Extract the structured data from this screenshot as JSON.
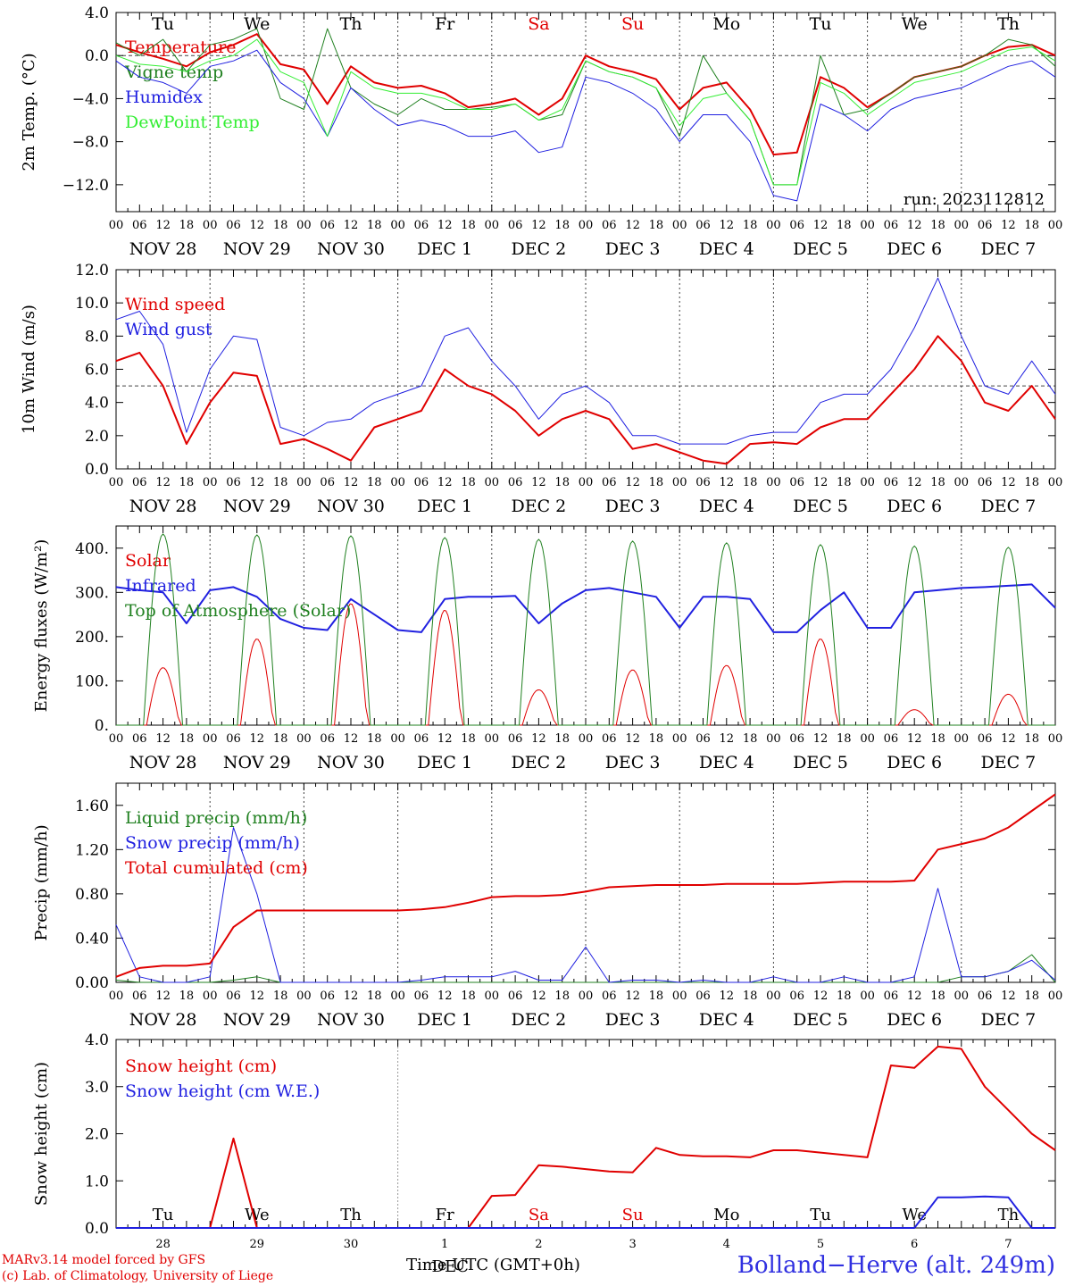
{
  "chart_data": [
    {
      "type": "line",
      "ylabel": "2m Temp. (°C)",
      "ylim": [
        -14.5,
        4.0
      ],
      "yticks": [
        4.0,
        0.0,
        -4.0,
        -8.0,
        -12.0
      ],
      "ytick_labels": [
        "4.0",
        "0.0",
        "−4.0",
        "−8.0",
        "−12.0"
      ],
      "weekdays": [
        "Tu",
        "We",
        "Th",
        "Fr",
        "Sa",
        "Su",
        "Mo",
        "Tu",
        "We",
        "Th"
      ],
      "annotation": "run: 2023112812",
      "reference_line": 0.0,
      "x": [
        0,
        6,
        12,
        18,
        24,
        30,
        36,
        42,
        48,
        54,
        60,
        66,
        72,
        78,
        84,
        90,
        96,
        102,
        108,
        114,
        120,
        126,
        132,
        138,
        144,
        150,
        156,
        162,
        168,
        174,
        180,
        186,
        192,
        198,
        204,
        210,
        216,
        222,
        228,
        234,
        240
      ],
      "series": [
        {
          "name": "Temperature",
          "color": "#e00000",
          "values": [
            1.0,
            0.3,
            -0.3,
            -1.0,
            0.3,
            1.0,
            2.0,
            -0.8,
            -1.3,
            -4.5,
            -1.0,
            -2.5,
            -3.0,
            -2.8,
            -3.5,
            -4.8,
            -4.5,
            -4.0,
            -5.5,
            -4.0,
            0.0,
            -1.0,
            -1.5,
            -2.2,
            -5.0,
            -3.0,
            -2.5,
            -5.0,
            -9.2,
            -9.0,
            -2.0,
            -3.0,
            -4.8,
            -3.5,
            -2.0,
            -1.5,
            -1.0,
            0.0,
            0.8,
            1.0,
            0.0
          ]
        },
        {
          "name": "Vigne temp",
          "color": "#208020",
          "values": [
            1.2,
            0.0,
            1.5,
            -1.5,
            1.0,
            1.5,
            2.5,
            -4.0,
            -5.0,
            2.5,
            -3.0,
            -4.5,
            -5.5,
            -4.0,
            -5.0,
            -5.0,
            -4.8,
            -4.5,
            -6.0,
            -5.5,
            -0.5,
            -1.5,
            -2.0,
            -3.0,
            -7.5,
            0.0,
            -3.5,
            -6.0,
            -12.0,
            -12.0,
            0.0,
            -5.5,
            -5.0,
            -3.5,
            -2.0,
            -1.5,
            -1.0,
            0.0,
            1.5,
            1.0,
            -1.0
          ]
        },
        {
          "name": "Humidex",
          "color": "#2020e0",
          "values": [
            -0.5,
            -2.0,
            -2.5,
            -3.5,
            -1.0,
            -0.5,
            0.5,
            -2.5,
            -4.0,
            -7.5,
            -3.0,
            -5.0,
            -6.5,
            -6.0,
            -6.5,
            -7.5,
            -7.5,
            -7.0,
            -9.0,
            -8.5,
            -2.0,
            -2.5,
            -3.5,
            -5.0,
            -8.0,
            -5.5,
            -5.5,
            -8.0,
            -13.0,
            -13.5,
            -4.5,
            -5.5,
            -7.0,
            -5.0,
            -4.0,
            -3.5,
            -3.0,
            -2.0,
            -1.0,
            -0.5,
            -2.0
          ]
        },
        {
          "name": "DewPoint Temp",
          "color": "#33ee33",
          "values": [
            0.0,
            -0.8,
            -1.0,
            -1.5,
            -0.5,
            0.0,
            1.5,
            -1.5,
            -2.5,
            -7.5,
            -1.5,
            -3.0,
            -3.5,
            -3.5,
            -4.0,
            -5.0,
            -5.0,
            -4.5,
            -6.0,
            -5.0,
            -0.5,
            -1.5,
            -2.0,
            -3.0,
            -6.5,
            -4.0,
            -3.5,
            -6.0,
            -12.0,
            -12.0,
            -2.5,
            -3.5,
            -5.5,
            -4.0,
            -2.5,
            -2.0,
            -1.5,
            -0.5,
            0.5,
            0.8,
            -0.5
          ]
        }
      ]
    },
    {
      "type": "line",
      "ylabel": "10m Wind (m/s)",
      "ylim": [
        0.0,
        12.0
      ],
      "yticks": [
        12.0,
        10.0,
        8.0,
        6.0,
        4.0,
        2.0,
        0.0
      ],
      "ytick_labels": [
        "12.0",
        "10.0",
        "8.0",
        "6.0",
        "4.0",
        "2.0",
        "0.0"
      ],
      "reference_line": 5.0,
      "x": [
        0,
        6,
        12,
        18,
        24,
        30,
        36,
        42,
        48,
        54,
        60,
        66,
        72,
        78,
        84,
        90,
        96,
        102,
        108,
        114,
        120,
        126,
        132,
        138,
        144,
        150,
        156,
        162,
        168,
        174,
        180,
        186,
        192,
        198,
        204,
        210,
        216,
        222,
        228,
        234,
        240
      ],
      "series": [
        {
          "name": "Wind speed",
          "color": "#e00000",
          "values": [
            6.5,
            7.0,
            5.0,
            1.5,
            4.0,
            5.8,
            5.6,
            1.5,
            1.8,
            1.2,
            0.5,
            2.5,
            3.0,
            3.5,
            6.0,
            5.0,
            4.5,
            3.5,
            2.0,
            3.0,
            3.5,
            3.0,
            1.2,
            1.5,
            1.0,
            0.5,
            0.3,
            1.5,
            1.6,
            1.5,
            2.5,
            3.0,
            3.0,
            4.5,
            6.0,
            8.0,
            6.5,
            4.0,
            3.5,
            5.0,
            3.0
          ]
        },
        {
          "name": "Wind gust",
          "color": "#2020e0",
          "values": [
            9.0,
            9.5,
            7.5,
            2.2,
            6.0,
            8.0,
            7.8,
            2.5,
            2.0,
            2.8,
            3.0,
            4.0,
            4.5,
            5.0,
            8.0,
            8.5,
            6.5,
            5.0,
            3.0,
            4.5,
            5.0,
            4.0,
            2.0,
            2.0,
            1.5,
            1.5,
            1.5,
            2.0,
            2.2,
            2.2,
            4.0,
            4.5,
            4.5,
            6.0,
            8.5,
            11.5,
            8.0,
            5.0,
            4.5,
            6.5,
            4.5
          ]
        }
      ]
    },
    {
      "type": "line",
      "ylabel": "Energy fluxes (W/m²)",
      "ylim": [
        0,
        450
      ],
      "yticks": [
        400,
        300,
        200,
        100,
        0
      ],
      "ytick_labels": [
        "400.",
        "300.",
        "200.",
        "100.",
        "0."
      ],
      "series": [
        {
          "name": "Solar",
          "color": "#e00000",
          "daily_peak": [
            130,
            195,
            275,
            260,
            80,
            125,
            135,
            195,
            35,
            70
          ]
        },
        {
          "name": "Infrared",
          "color": "#2020e0",
          "x": [
            0,
            6,
            12,
            18,
            24,
            30,
            36,
            42,
            48,
            54,
            60,
            66,
            72,
            78,
            84,
            90,
            96,
            102,
            108,
            114,
            120,
            126,
            132,
            138,
            144,
            150,
            156,
            162,
            168,
            174,
            180,
            186,
            192,
            198,
            204,
            210,
            216,
            222,
            228,
            234,
            240
          ],
          "values": [
            312,
            305,
            300,
            230,
            305,
            312,
            290,
            240,
            220,
            215,
            285,
            250,
            215,
            210,
            285,
            290,
            290,
            292,
            230,
            275,
            305,
            310,
            300,
            290,
            220,
            290,
            290,
            285,
            210,
            210,
            260,
            300,
            220,
            220,
            300,
            305,
            310,
            312,
            315,
            318,
            265
          ]
        },
        {
          "name": "Top of Atmosphere (Solar)",
          "color": "#208020",
          "daily_peak": [
            432,
            430,
            428,
            424,
            420,
            416,
            412,
            408,
            405,
            402
          ]
        }
      ]
    },
    {
      "type": "line",
      "ylabel": "Precip (mm/h)",
      "ylim": [
        0.0,
        1.8
      ],
      "yticks": [
        1.6,
        1.2,
        0.8,
        0.4,
        0.0
      ],
      "ytick_labels": [
        "1.60",
        "1.20",
        "0.80",
        "0.40",
        "0.00"
      ],
      "x": [
        0,
        6,
        12,
        18,
        24,
        30,
        36,
        42,
        48,
        54,
        60,
        66,
        72,
        78,
        84,
        90,
        96,
        102,
        108,
        114,
        120,
        126,
        132,
        138,
        144,
        150,
        156,
        162,
        168,
        174,
        180,
        186,
        192,
        198,
        204,
        210,
        216,
        222,
        228,
        234,
        240
      ],
      "series": [
        {
          "name": "Liquid precip (mm/h)",
          "color": "#208020",
          "values": [
            0.02,
            0.0,
            0.0,
            0.0,
            0.0,
            0.02,
            0.05,
            0.0,
            0.0,
            0.0,
            0.0,
            0.0,
            0.0,
            0.0,
            0.0,
            0.0,
            0.0,
            0.0,
            0.0,
            0.0,
            0.0,
            0.0,
            0.0,
            0.0,
            0.0,
            0.0,
            0.0,
            0.0,
            0.0,
            0.0,
            0.0,
            0.0,
            0.0,
            0.0,
            0.0,
            0.0,
            0.05,
            0.05,
            0.1,
            0.25,
            0.0
          ]
        },
        {
          "name": "Snow precip (mm/h)",
          "color": "#2020e0",
          "values": [
            0.52,
            0.05,
            0.0,
            0.0,
            0.05,
            1.4,
            0.8,
            0.0,
            0.0,
            0.0,
            0.0,
            0.0,
            0.0,
            0.02,
            0.05,
            0.05,
            0.05,
            0.1,
            0.02,
            0.02,
            0.32,
            0.0,
            0.02,
            0.02,
            0.0,
            0.02,
            0.0,
            0.0,
            0.05,
            0.0,
            0.0,
            0.05,
            0.0,
            0.0,
            0.05,
            0.85,
            0.05,
            0.05,
            0.1,
            0.2,
            0.02
          ]
        },
        {
          "name": "Total cumulated (cm)",
          "color": "#e00000",
          "values": [
            0.05,
            0.13,
            0.15,
            0.15,
            0.17,
            0.5,
            0.65,
            0.65,
            0.65,
            0.65,
            0.65,
            0.65,
            0.65,
            0.66,
            0.68,
            0.72,
            0.77,
            0.78,
            0.78,
            0.79,
            0.82,
            0.86,
            0.87,
            0.88,
            0.88,
            0.88,
            0.89,
            0.89,
            0.89,
            0.89,
            0.9,
            0.91,
            0.91,
            0.91,
            0.92,
            1.2,
            1.25,
            1.3,
            1.4,
            1.55,
            1.7
          ]
        }
      ]
    },
    {
      "type": "line",
      "ylabel": "Snow height (cm)",
      "xlabel": "Time UTC (GMT+0h)",
      "ylim": [
        0.0,
        4.0
      ],
      "yticks": [
        4.0,
        3.0,
        2.0,
        1.0,
        0.0
      ],
      "ytick_labels": [
        "4.0",
        "3.0",
        "2.0",
        "1.0",
        "0.0"
      ],
      "day_numbers": [
        "28",
        "29",
        "30",
        "1",
        "2",
        "3",
        "4",
        "5",
        "6",
        "7"
      ],
      "weekdays": [
        "Tu",
        "We",
        "Th",
        "Fr",
        "Sa",
        "Su",
        "Mo",
        "Tu",
        "We",
        "Th"
      ],
      "month_label": "DEC",
      "x": [
        0,
        6,
        12,
        18,
        24,
        30,
        36,
        42,
        48,
        54,
        60,
        66,
        72,
        78,
        84,
        90,
        96,
        102,
        108,
        114,
        120,
        126,
        132,
        138,
        144,
        150,
        156,
        162,
        168,
        174,
        180,
        186,
        192,
        198,
        204,
        210,
        216,
        222,
        228,
        234,
        240
      ],
      "series": [
        {
          "name": "Snow height (cm)",
          "color": "#e00000",
          "values": [
            0.0,
            0.0,
            0.0,
            0.0,
            0.0,
            1.9,
            0.0,
            0.0,
            0.0,
            0.0,
            0.0,
            0.0,
            0.0,
            0.0,
            0.0,
            0.0,
            0.68,
            0.7,
            1.33,
            1.3,
            1.25,
            1.2,
            1.18,
            1.7,
            1.55,
            1.52,
            1.52,
            1.5,
            1.65,
            1.65,
            1.6,
            1.55,
            1.5,
            3.45,
            3.4,
            3.85,
            3.8,
            3.0,
            2.5,
            2.0,
            1.65
          ]
        },
        {
          "name": "Snow height (cm W.E.)",
          "color": "#2020e0",
          "values": [
            0.0,
            0.0,
            0.0,
            0.0,
            0.0,
            0.0,
            0.0,
            0.0,
            0.0,
            0.0,
            0.0,
            0.0,
            0.0,
            0.0,
            0.0,
            0.0,
            0.0,
            0.0,
            0.0,
            0.0,
            0.0,
            0.0,
            0.0,
            0.0,
            0.0,
            0.0,
            0.0,
            0.0,
            0.0,
            0.0,
            0.0,
            0.0,
            0.0,
            0.0,
            0.0,
            0.65,
            0.65,
            0.67,
            0.65,
            0.0,
            0.0
          ]
        }
      ]
    }
  ],
  "x_axis": {
    "hour_labels": [
      "00",
      "06",
      "12",
      "18"
    ],
    "end_label": "00",
    "day_labels": [
      "NOV 28",
      "NOV 29",
      "NOV 30",
      "DEC  1",
      "DEC  2",
      "DEC  3",
      "DEC  4",
      "DEC  5",
      "DEC  6",
      "DEC  7"
    ],
    "weekend_color": "#e00000",
    "weekday_color": "#000000"
  },
  "footer": {
    "model_line": "MARv3.14 model forced by GFS",
    "credit_line": "(c) Lab. of Climatology, University of Liege",
    "location": "Bolland−Herve (alt. 249m)",
    "time_label": "Time UTC (GMT+0h)"
  }
}
